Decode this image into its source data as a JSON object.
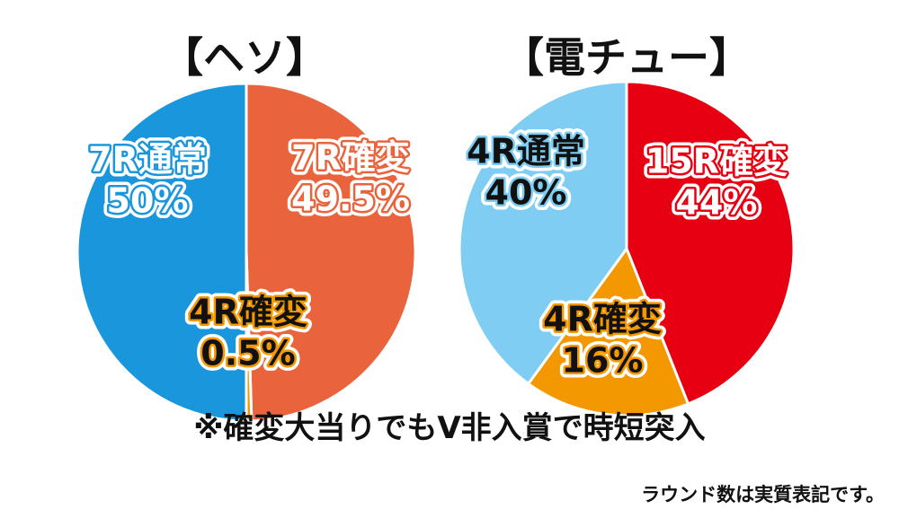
{
  "chart_data": [
    {
      "type": "pie",
      "title": "【ヘソ】",
      "slices": [
        {
          "label": "7R確変",
          "value": 49.5,
          "value_text": "49.5%",
          "color": "#e9643d",
          "label_color": "#ffffff",
          "outline_color": "#e9643d"
        },
        {
          "label": "4R確変",
          "value": 0.5,
          "value_text": "0.5%",
          "color": "#f39800",
          "label_color": "#111111",
          "outline_color": "#f39800"
        },
        {
          "label": "7R通常",
          "value": 50,
          "value_text": "50%",
          "color": "#1a96dd",
          "label_color": "#ffffff",
          "outline_color": "#1a96dd"
        }
      ]
    },
    {
      "type": "pie",
      "title": "【電チュー】",
      "slices": [
        {
          "label": "15R確変",
          "value": 44,
          "value_text": "44%",
          "color": "#e60012",
          "label_color": "#ffffff",
          "outline_color": "#e60012"
        },
        {
          "label": "4R確変",
          "value": 16,
          "value_text": "16%",
          "color": "#f39800",
          "label_color": "#111111",
          "outline_color": "#f39800"
        },
        {
          "label": "4R通常",
          "value": 40,
          "value_text": "40%",
          "color": "#7fcdf3",
          "label_color": "#111111",
          "outline_color": "#7fcdf3"
        }
      ]
    }
  ],
  "footnote": "※確変大当りでもV非入賞で時短突入",
  "corner_note": "ラウンド数は実質表記です。"
}
